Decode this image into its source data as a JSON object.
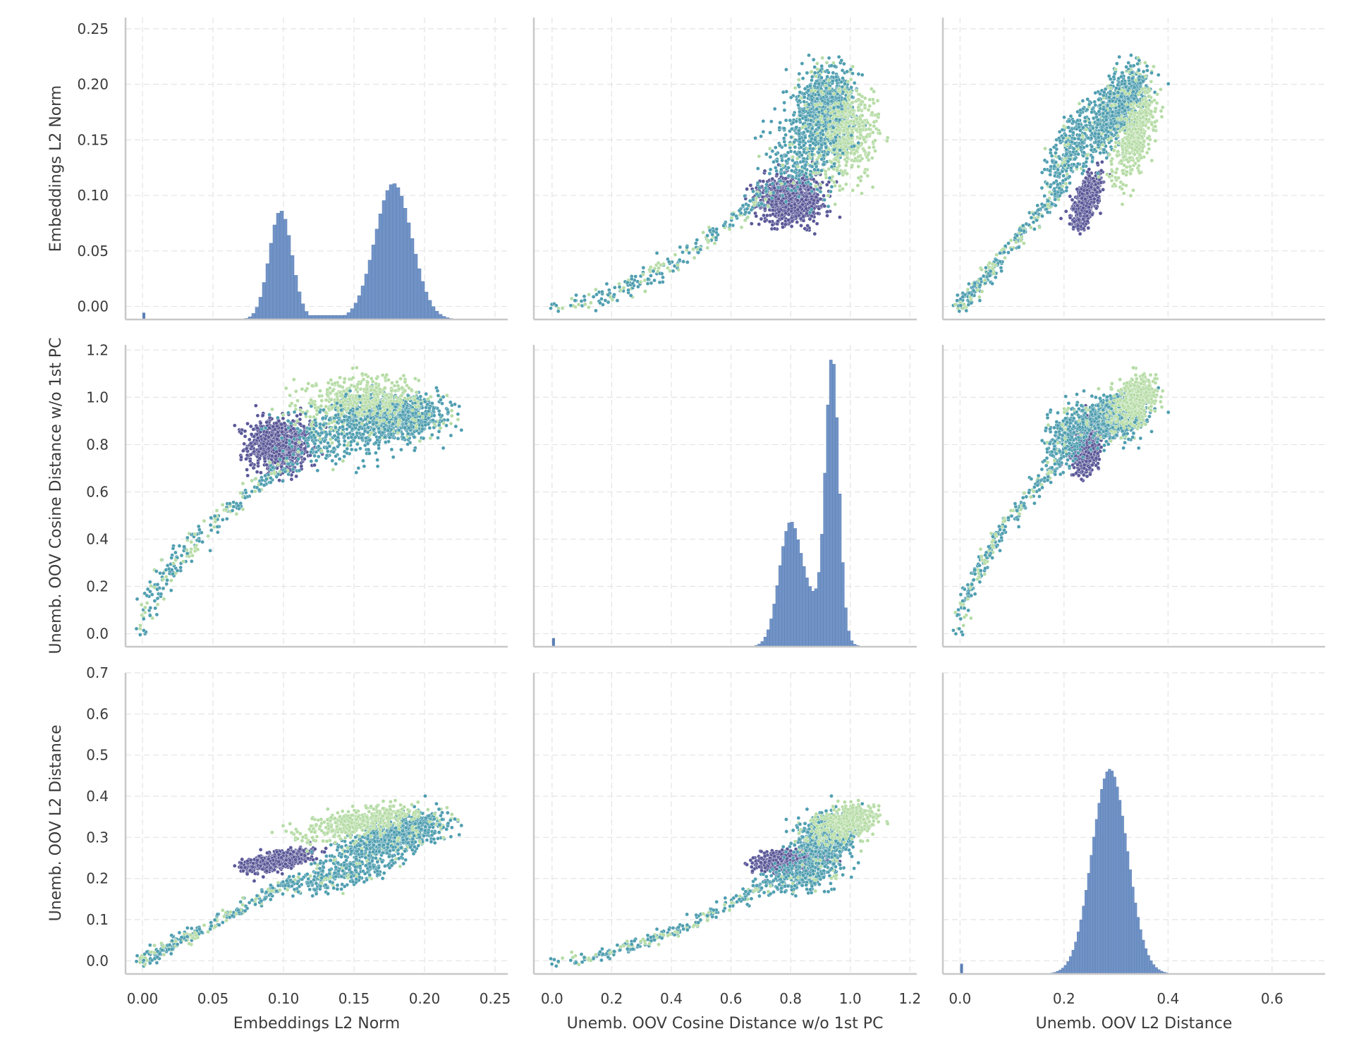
{
  "chart_data": {
    "type": "pairplot",
    "grid": true,
    "variables": [
      {
        "label": "Embeddings L2 Norm",
        "range": [
          -0.012,
          0.259
        ],
        "ticks": [
          0.0,
          0.05,
          0.1,
          0.15,
          0.2,
          0.25
        ],
        "tick_labels": [
          "0.00",
          "0.05",
          "0.10",
          "0.15",
          "0.20",
          "0.25"
        ]
      },
      {
        "label": "Unemb. OOV Cosine Distance w/o 1st PC",
        "range": [
          -0.061,
          1.223
        ],
        "ticks": [
          0.0,
          0.2,
          0.4,
          0.6,
          0.8,
          1.0,
          1.2
        ],
        "tick_labels": [
          "0.0",
          "0.2",
          "0.4",
          "0.6",
          "0.8",
          "1.0",
          "1.2"
        ]
      },
      {
        "label": "Unemb. OOV L2 Distance",
        "range": [
          -0.033,
          0.702
        ],
        "ticks": [
          0.0,
          0.2,
          0.4,
          0.6
        ],
        "tick_labels": [
          "0.0",
          "0.2",
          "0.4",
          "0.6"
        ]
      }
    ],
    "y_axes": [
      {
        "label": "Embeddings L2 Norm",
        "range": [
          -0.0117,
          0.26
        ],
        "ticks": [
          0.0,
          0.05,
          0.1,
          0.15,
          0.2,
          0.25
        ],
        "tick_labels": [
          "0.00",
          "0.05",
          "0.10",
          "0.15",
          "0.20",
          "0.25"
        ]
      },
      {
        "label": "Unemb. OOV Cosine Distance w/o 1st PC",
        "range": [
          -0.055,
          1.222
        ],
        "ticks": [
          0.0,
          0.2,
          0.4,
          0.6,
          0.8,
          1.0,
          1.2
        ],
        "tick_labels": [
          "0.0",
          "0.2",
          "0.4",
          "0.6",
          "0.8",
          "1.0",
          "1.2"
        ]
      },
      {
        "label": "Unemb. OOV L2 Distance",
        "range": [
          -0.032,
          0.7
        ],
        "ticks": [
          0.0,
          0.1,
          0.2,
          0.3,
          0.4,
          0.5,
          0.6,
          0.7
        ],
        "tick_labels": [
          "0.0",
          "0.1",
          "0.2",
          "0.3",
          "0.4",
          "0.5",
          "0.6",
          "0.7"
        ]
      }
    ],
    "hue_colors": {
      "purple": "#5a5898",
      "teal": "#4f9eb0",
      "light_green": "#b6dca6"
    },
    "histogram_color": "#7193c6",
    "diagonal_histograms": [
      {
        "bin_width": 0.0025,
        "spike": {
          "x": 0.001,
          "rel_height": 0.05
        },
        "components": [
          {
            "mean": 0.098,
            "sd": 0.008,
            "rel_peak": 0.8
          },
          {
            "mean": 0.178,
            "sd": 0.013,
            "rel_peak": 1.0
          }
        ],
        "floor": {
          "from": 0.105,
          "to": 0.16,
          "rel_height": 0.03
        }
      },
      {
        "bin_width": 0.01,
        "spike": {
          "x": 0.005,
          "rel_height": 0.03
        },
        "components": [
          {
            "mean": 0.795,
            "sd": 0.035,
            "rel_peak": 0.36
          },
          {
            "mean": 0.94,
            "sd": 0.022,
            "rel_peak": 1.0
          },
          {
            "mean": 0.86,
            "sd": 0.06,
            "rel_peak": 0.17
          }
        ],
        "floor": null
      },
      {
        "bin_width": 0.005,
        "spike": {
          "x": 0.003,
          "rel_height": 0.05
        },
        "components": [
          {
            "mean": 0.288,
            "sd": 0.034,
            "rel_peak": 1.0
          }
        ],
        "floor": null
      }
    ],
    "scatter_clusters": [
      {
        "hue": "purple",
        "n": 900,
        "mean": [
          0.097,
          0.8,
          0.245
        ],
        "sd": [
          0.011,
          0.055,
          0.014
        ]
      },
      {
        "hue": "teal",
        "n": 1100,
        "mean": [
          0.178,
          0.915,
          0.3
        ],
        "sd": [
          0.017,
          0.045,
          0.033
        ]
      },
      {
        "hue": "light_green",
        "n": 420,
        "mean": [
          0.155,
          0.99,
          0.34
        ],
        "sd": [
          0.02,
          0.05,
          0.025
        ]
      },
      {
        "hue": "teal",
        "n": 300,
        "mean": [
          0.14,
          0.85,
          0.21
        ],
        "sd": [
          0.018,
          0.06,
          0.025
        ]
      },
      {
        "hue": "teal",
        "n": 260,
        "tail_from": [
          0.0,
          0.0,
          0.0
        ],
        "tail_to": [
          0.11,
          0.75,
          0.2
        ]
      }
    ]
  }
}
